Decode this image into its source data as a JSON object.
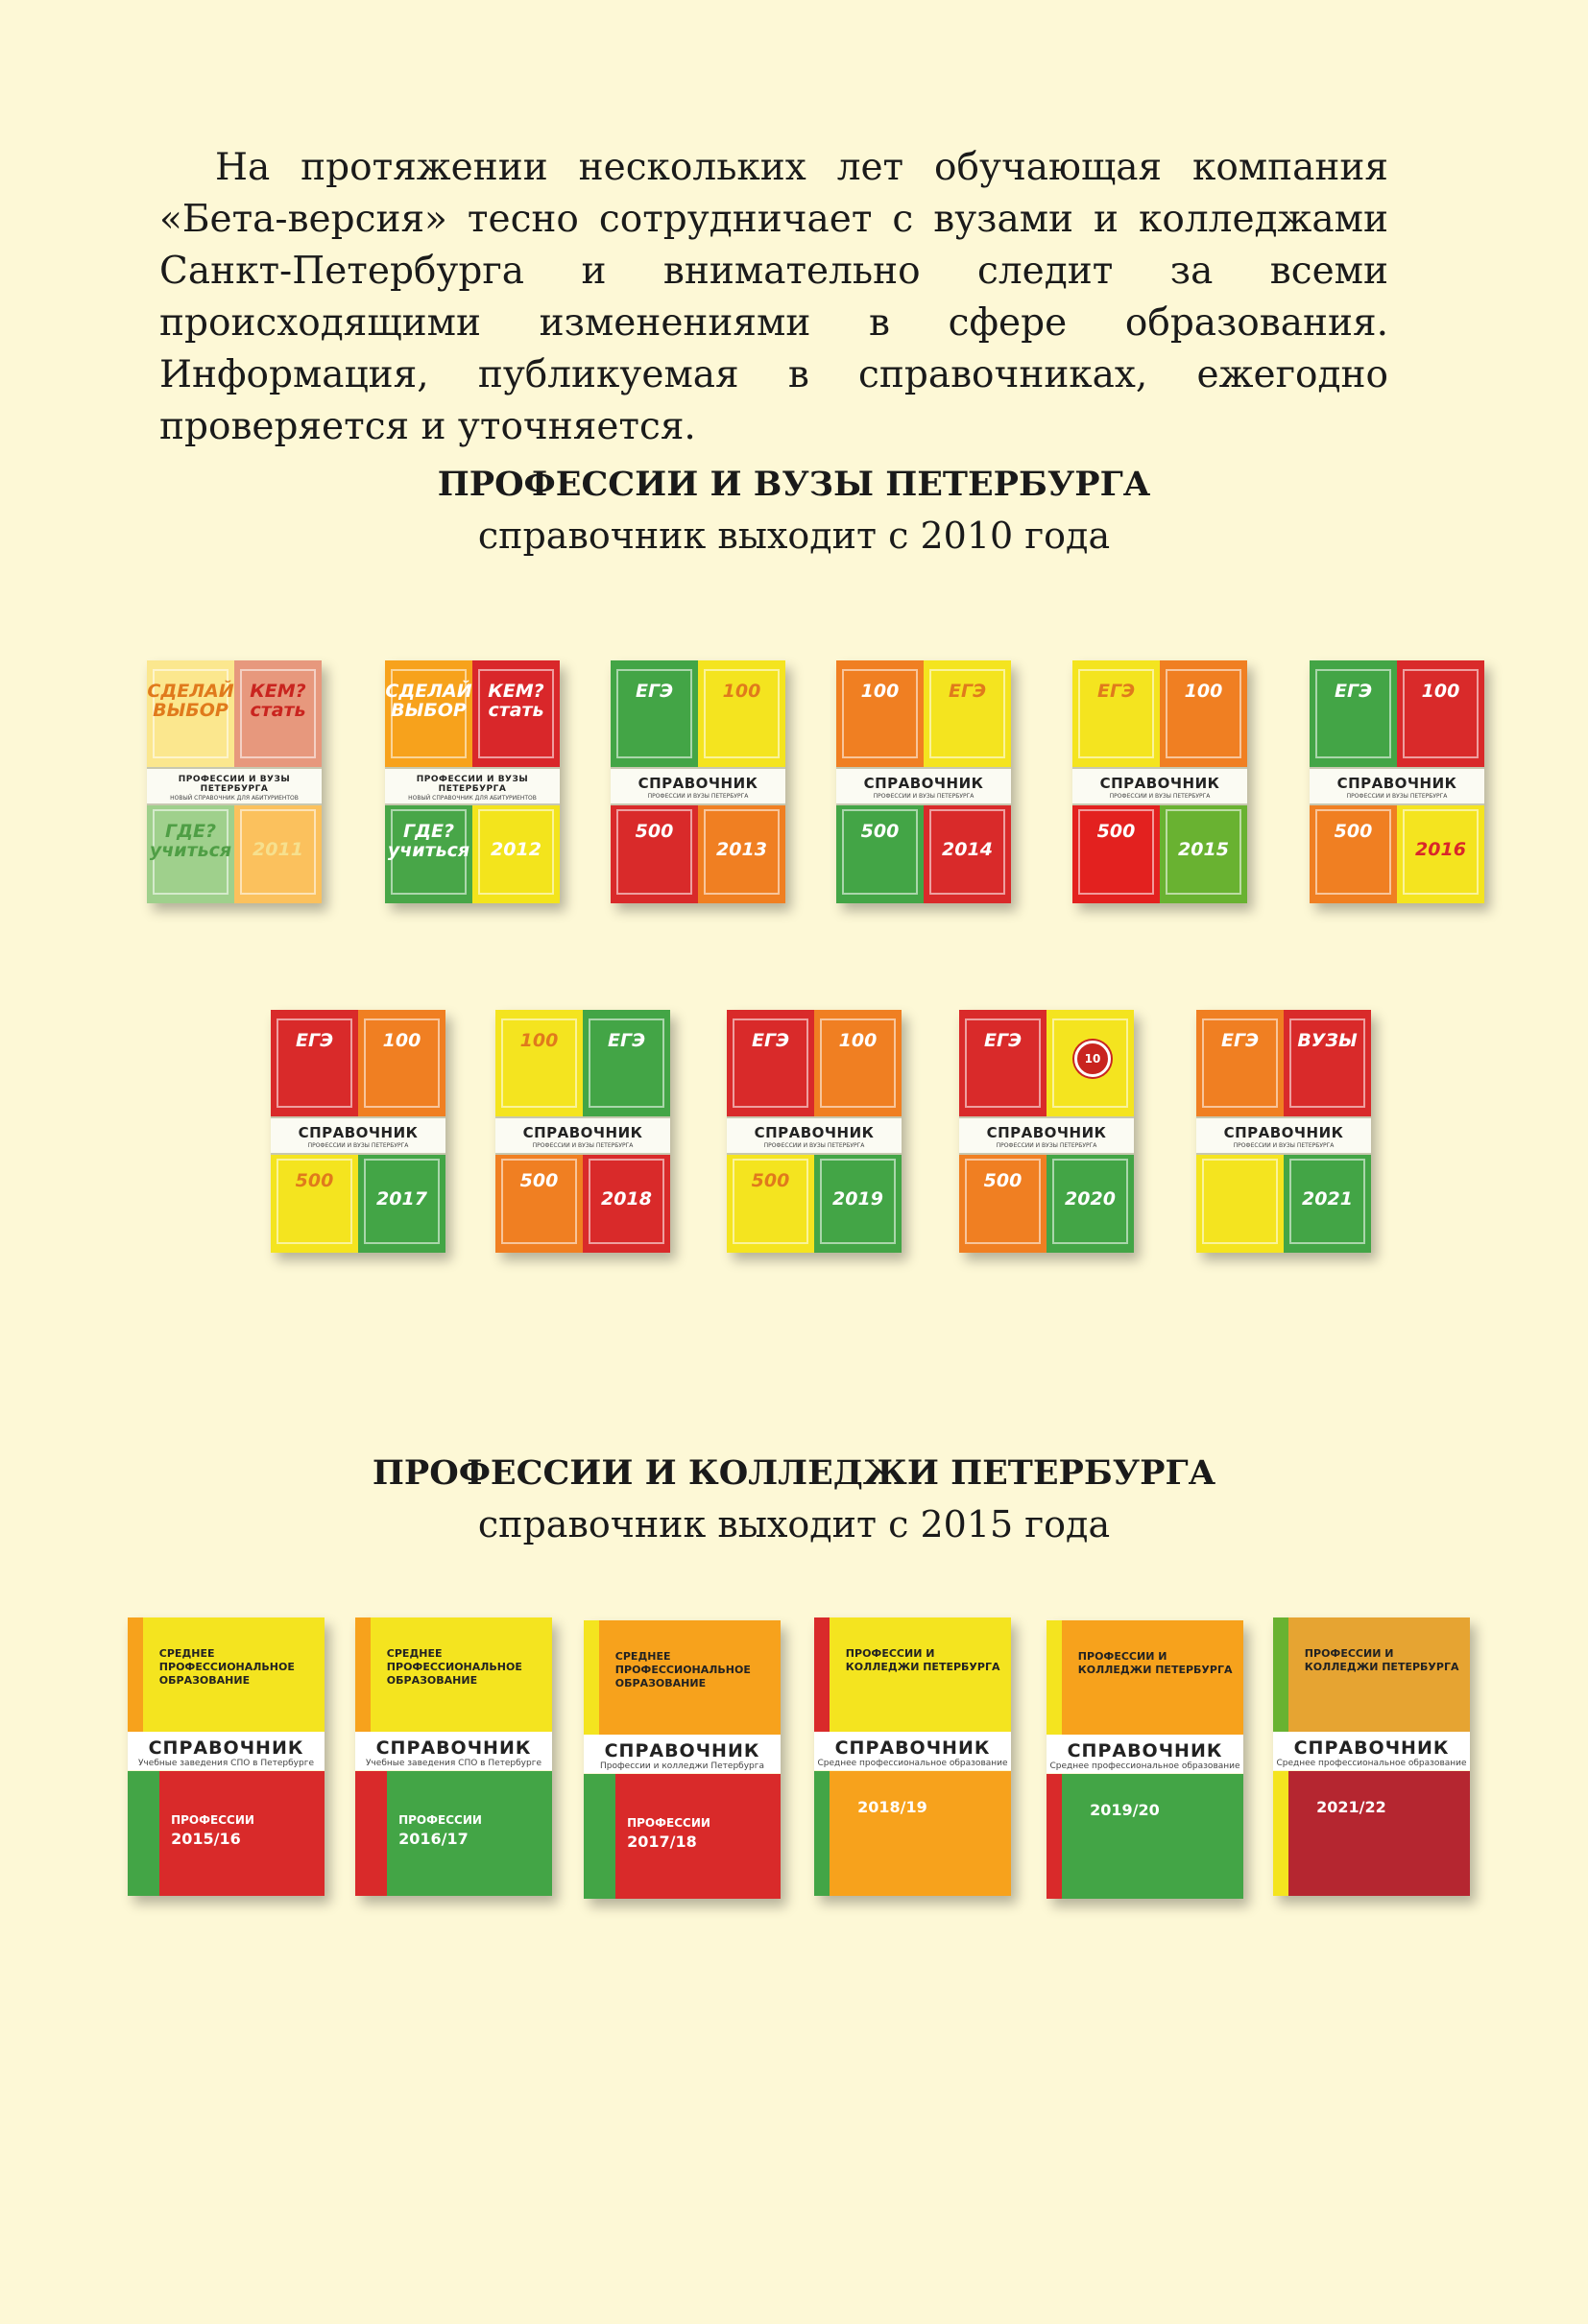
{
  "intro": "На протяжении нескольких лет обучающая компания «Бета-версия» тесно сотрудничает с вузами и колледжами Санкт-Петербурга и внимательно следит за всеми происходящими изменениями в сфере образования. Информация, публикуемая в справочниках, ежегодно проверяется и уточняется.",
  "section1": {
    "title": "ПРОФЕССИИ И ВУЗЫ ПЕТЕРБУРГА",
    "subtitle": "справочник выходит с 2010 года"
  },
  "section2": {
    "title": "ПРОФЕССИИ И КОЛЛЕДЖИ ПЕТЕРБУРГА",
    "subtitle": "справочник выходит с 2015 года"
  },
  "vuz_books": [
    {
      "year": "2011",
      "tl": "СДЕЛАЙ ВЫБОР",
      "tr": "КЕМ? стать",
      "bl": "ГДЕ? учиться",
      "band_title": "ПРОФЕССИИ И ВУЗЫ ПЕТЕРБУРГА",
      "band_sub": "НОВЫЙ СПРАВОЧНИК ДЛЯ АБИТУРИЕНТОВ",
      "colors": [
        "#fbe78e",
        "#e7987d",
        "#9fd08c",
        "#fbc15d"
      ]
    },
    {
      "year": "2012",
      "tl": "СДЕЛАЙ ВЫБОР",
      "tr": "КЕМ? стать",
      "bl": "ГДЕ? учиться",
      "band_title": "ПРОФЕССИИ И ВУЗЫ ПЕТЕРБУРГА",
      "band_sub": "НОВЫЙ СПРАВОЧНИК ДЛЯ АБИТУРИЕНТОВ",
      "colors": [
        "#f7a21c",
        "#d9272a",
        "#48a648",
        "#f3e41c"
      ]
    },
    {
      "year": "2013",
      "tl": "ЕГЭ",
      "tr": "100",
      "bl": "500",
      "band_title": "СПРАВОЧНИК",
      "band_sub": "ПРОФЕССИИ И ВУЗЫ ПЕТЕРБУРГА",
      "colors": [
        "#43a546",
        "#f4e41f",
        "#d92a2a",
        "#f07f22"
      ]
    },
    {
      "year": "2014",
      "tl": "100",
      "tr": "ЕГЭ",
      "bl": "500",
      "band_title": "СПРАВОЧНИК",
      "band_sub": "ПРОФЕССИИ И ВУЗЫ ПЕТЕРБУРГА",
      "colors": [
        "#f07f22",
        "#f4e41f",
        "#43a546",
        "#d92a2a"
      ]
    },
    {
      "year": "2015",
      "tl": "ЕГЭ",
      "tr": "100",
      "bl": "500",
      "band_title": "СПРАВОЧНИК",
      "band_sub": "ПРОФЕССИИ И ВУЗЫ ПЕТЕРБУРГА",
      "colors": [
        "#f4e41f",
        "#f07f22",
        "#e3211f",
        "#69b231"
      ]
    },
    {
      "year": "2016",
      "tl": "ЕГЭ",
      "tr": "100",
      "bl": "500",
      "band_title": "СПРАВОЧНИК",
      "band_sub": "ПРОФЕССИИ И ВУЗЫ ПЕТЕРБУРГА",
      "colors": [
        "#43a546",
        "#d92a2a",
        "#f07f22",
        "#f4e41f"
      ]
    },
    {
      "year": "2017",
      "tl": "ЕГЭ",
      "tr": "100",
      "bl": "500",
      "band_title": "СПРАВОЧНИК",
      "band_sub": "ПРОФЕССИИ И ВУЗЫ ПЕТЕРБУРГА",
      "colors": [
        "#d92a2a",
        "#f07f22",
        "#f4e41f",
        "#43a546"
      ]
    },
    {
      "year": "2018",
      "tl": "100",
      "tr": "ЕГЭ",
      "bl": "500",
      "band_title": "СПРАВОЧНИК",
      "band_sub": "ПРОФЕССИИ И ВУЗЫ ПЕТЕРБУРГА",
      "colors": [
        "#f4e41f",
        "#43a546",
        "#f07f22",
        "#d92a2a"
      ]
    },
    {
      "year": "2019",
      "tl": "ЕГЭ",
      "tr": "100",
      "bl": "500",
      "band_title": "СПРАВОЧНИК",
      "band_sub": "ПРОФЕССИИ И ВУЗЫ ПЕТЕРБУРГА",
      "colors": [
        "#d92a2a",
        "#f07f22",
        "#f4e41f",
        "#43a546"
      ]
    },
    {
      "year": "2020",
      "tl": "ЕГЭ",
      "tr": "",
      "bl": "500",
      "band_title": "СПРАВОЧНИК",
      "band_sub": "ПРОФЕССИИ И ВУЗЫ ПЕТЕРБУРГА",
      "badge": "10",
      "colors": [
        "#d92a2a",
        "#f4e41f",
        "#f07f22",
        "#43a546"
      ]
    },
    {
      "year": "2021",
      "tl": "ЕГЭ",
      "tr": "ВУЗЫ",
      "bl": "",
      "band_title": "СПРАВОЧНИК",
      "band_sub": "ПРОФЕССИИ И ВУЗЫ ПЕТЕРБУРГА",
      "colors": [
        "#f07f22",
        "#d92a2a",
        "#f4e41f",
        "#43a546"
      ]
    }
  ],
  "college_books": [
    {
      "top_text": "СРЕДНЕЕ ПРОФЕССИОНАЛЬНОЕ ОБРАЗОВАНИЕ",
      "band_title": "СПРАВОЧНИК",
      "band_sub": "Учебные заведения СПО в Петербурге",
      "bottom_label": "ПРОФЕССИИ",
      "year": "2015/16",
      "top_color": "#f4e41f",
      "top_stripe": "#f7a21c",
      "bottom_color": "#d92a2a",
      "bottom_stripe": "#43a546"
    },
    {
      "top_text": "СРЕДНЕЕ ПРОФЕССИОНАЛЬНОЕ ОБРАЗОВАНИЕ",
      "band_title": "СПРАВОЧНИК",
      "band_sub": "Учебные заведения СПО в Петербурге",
      "bottom_label": "ПРОФЕССИИ",
      "year": "2016/17",
      "top_color": "#f4e41f",
      "top_stripe": "#f7a21c",
      "bottom_color": "#43a546",
      "bottom_stripe": "#d92a2a"
    },
    {
      "top_text": "СРЕДНЕЕ ПРОФЕССИОНАЛЬНОЕ ОБРАЗОВАНИЕ",
      "band_title": "СПРАВОЧНИК",
      "band_sub": "Профессии и колледжи Петербурга",
      "bottom_label": "ПРОФЕССИИ",
      "year": "2017/18",
      "top_color": "#f7a21c",
      "top_stripe": "#f4e41f",
      "bottom_color": "#d92a2a",
      "bottom_stripe": "#43a546"
    },
    {
      "top_text": "ПРОФЕССИИ И КОЛЛЕДЖИ ПЕТЕРБУРГА",
      "band_title": "СПРАВОЧНИК",
      "band_sub": "Среднее профессиональное образование",
      "bottom_label": "",
      "year": "2018/19",
      "top_color": "#f4e41f",
      "top_stripe": "#d92a2a",
      "bottom_color": "#f7a21c",
      "bottom_stripe": "#43a546"
    },
    {
      "top_text": "ПРОФЕССИИ И КОЛЛЕДЖИ ПЕТЕРБУРГА",
      "band_title": "СПРАВОЧНИК",
      "band_sub": "Среднее профессиональное образование",
      "bottom_label": "",
      "year": "2019/20",
      "top_color": "#f7a21c",
      "top_stripe": "#f4e41f",
      "bottom_color": "#43a546",
      "bottom_stripe": "#d92a2a"
    },
    {
      "top_text": "ПРОФЕССИИ И КОЛЛЕДЖИ ПЕТЕРБУРГА",
      "band_title": "СПРАВОЧНИК",
      "band_sub": "Среднее профессиональное образование",
      "bottom_label": "",
      "year": "2021/22",
      "top_color": "#e6a432",
      "top_stripe": "#69b231",
      "bottom_color": "#b52630",
      "bottom_stripe": "#f4e41f"
    }
  ]
}
